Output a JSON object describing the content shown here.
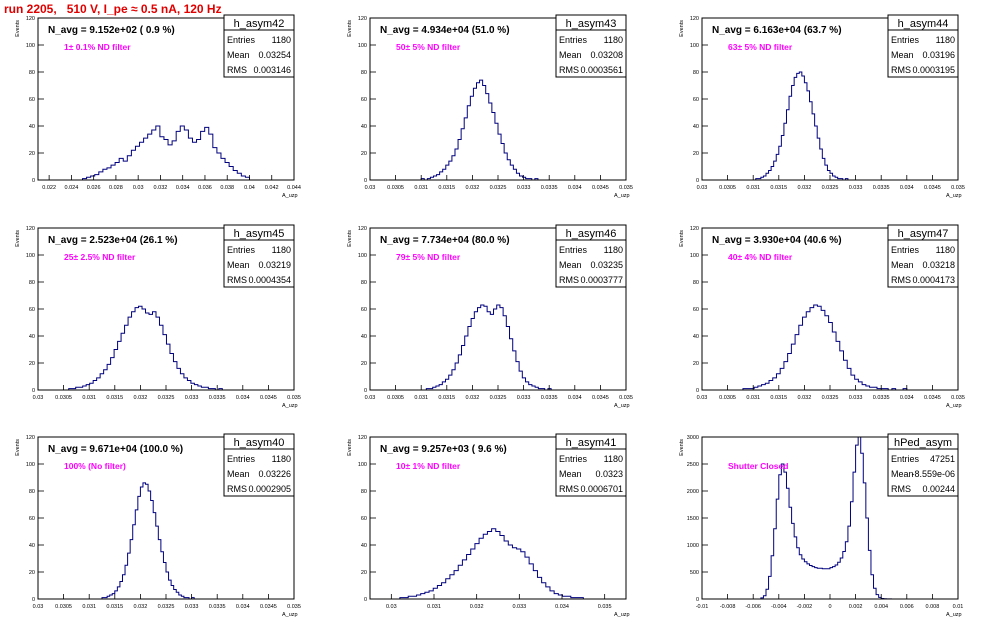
{
  "run_title": "run 2205,   510 V, I_pe ≈ 0.5 nA, 120 Hz",
  "colors": {
    "hist": "#00007f",
    "label": "#ff00ff",
    "run_title": "#e00000",
    "axis": "#000000"
  },
  "common": {
    "ylabel": "Events",
    "xlabel": "A_uzp",
    "stat_keys": [
      "Entries",
      "Mean",
      "RMS"
    ]
  },
  "chart_data": [
    {
      "type": "bar",
      "histogram": true,
      "title": "h_asym42",
      "navg": "N_avg = 9.152e+02 ( 0.9 %)",
      "filter": "1± 0.1% ND filter",
      "stats": {
        "Entries": "1180",
        "Mean": "0.03254",
        "RMS": "0.003146"
      },
      "xlim": [
        0.021,
        0.044
      ],
      "ylim": [
        0,
        120
      ],
      "xticks": [
        0.022,
        0.024,
        0.026,
        0.028,
        0.03,
        0.032,
        0.034,
        0.036,
        0.038,
        0.04,
        0.042,
        0.044
      ],
      "xticklabels": [
        "0.022",
        "0.024",
        "0.026",
        "0.028",
        "0.03",
        "0.032",
        "0.034",
        "0.036",
        "0.038",
        "0.04",
        "0.042",
        "0.044"
      ],
      "yticks": [
        0,
        20,
        40,
        60,
        80,
        100,
        120
      ],
      "yticklabels": [
        "0",
        "20",
        "40",
        "60",
        "80",
        "100",
        "120"
      ],
      "bins": {
        "lo": 0.025,
        "hi": 0.04,
        "n": 41
      },
      "values": [
        1,
        2,
        3,
        4,
        6,
        8,
        9,
        11,
        13,
        16,
        14,
        18,
        22,
        25,
        28,
        31,
        34,
        37,
        40,
        32,
        30,
        26,
        29,
        36,
        40,
        37,
        31,
        28,
        30,
        36,
        39,
        34,
        24,
        20,
        16,
        13,
        10,
        7,
        5,
        3,
        2
      ]
    },
    {
      "type": "bar",
      "histogram": true,
      "title": "h_asym43",
      "navg": "N_avg = 4.934e+04 (51.0 %)",
      "filter": "50± 5% ND filter",
      "stats": {
        "Entries": "1180",
        "Mean": "0.03208",
        "RMS": "0.0003561"
      },
      "xlim": [
        0.03,
        0.035
      ],
      "ylim": [
        0,
        120
      ],
      "xticks": [
        0.03,
        0.0305,
        0.031,
        0.0315,
        0.032,
        0.0325,
        0.033,
        0.0335,
        0.034,
        0.0345,
        0.035
      ],
      "xticklabels": [
        "0.03",
        "0.0305",
        "0.031",
        "0.0315",
        "0.032",
        "0.0325",
        "0.033",
        "0.0335",
        "0.034",
        "0.0345",
        "0.035"
      ],
      "yticks": [
        0,
        20,
        40,
        60,
        80,
        100,
        120
      ],
      "yticklabels": [
        "0",
        "20",
        "40",
        "60",
        "80",
        "100",
        "120"
      ],
      "bins": {
        "lo": 0.031,
        "hi": 0.0334,
        "n": 40
      },
      "values": [
        1,
        0,
        1,
        2,
        3,
        4,
        6,
        8,
        11,
        14,
        18,
        23,
        30,
        38,
        46,
        55,
        62,
        68,
        72,
        74,
        70,
        64,
        57,
        50,
        42,
        34,
        27,
        20,
        15,
        11,
        8,
        5,
        3,
        2,
        1,
        1,
        0,
        1,
        0,
        0
      ]
    },
    {
      "type": "bar",
      "histogram": true,
      "title": "h_asym44",
      "navg": "N_avg = 6.163e+04 (63.7 %)",
      "filter": "63± 5% ND filter",
      "stats": {
        "Entries": "1180",
        "Mean": "0.03196",
        "RMS": "0.0003195"
      },
      "xlim": [
        0.03,
        0.035
      ],
      "ylim": [
        0,
        120
      ],
      "xticks": [
        0.03,
        0.0305,
        0.031,
        0.0315,
        0.032,
        0.0325,
        0.033,
        0.0335,
        0.034,
        0.0345,
        0.035
      ],
      "xticklabels": [
        "0.03",
        "0.0305",
        "0.031",
        "0.0315",
        "0.032",
        "0.0325",
        "0.033",
        "0.0335",
        "0.034",
        "0.0345",
        "0.035"
      ],
      "yticks": [
        0,
        20,
        40,
        60,
        80,
        100,
        120
      ],
      "yticklabels": [
        "0",
        "20",
        "40",
        "60",
        "80",
        "100",
        "120"
      ],
      "bins": {
        "lo": 0.031,
        "hi": 0.033,
        "n": 40
      },
      "values": [
        0,
        1,
        1,
        2,
        3,
        5,
        7,
        10,
        14,
        19,
        25,
        33,
        42,
        52,
        62,
        70,
        76,
        79,
        80,
        77,
        72,
        66,
        58,
        49,
        40,
        31,
        23,
        16,
        11,
        7,
        5,
        3,
        2,
        1,
        1,
        0,
        1,
        0,
        0,
        0
      ]
    },
    {
      "type": "bar",
      "histogram": true,
      "title": "h_asym45",
      "navg": "N_avg = 2.523e+04 (26.1 %)",
      "filter": "25± 2.5% ND filter",
      "stats": {
        "Entries": "1180",
        "Mean": "0.03219",
        "RMS": "0.0004354"
      },
      "xlim": [
        0.03,
        0.035
      ],
      "ylim": [
        0,
        120
      ],
      "xticks": [
        0.03,
        0.0305,
        0.031,
        0.0315,
        0.032,
        0.0325,
        0.033,
        0.0335,
        0.034,
        0.0345,
        0.035
      ],
      "xticklabels": [
        "0.03",
        "0.0305",
        "0.031",
        "0.0315",
        "0.032",
        "0.0325",
        "0.033",
        "0.0335",
        "0.034",
        "0.0345",
        "0.035"
      ],
      "yticks": [
        0,
        20,
        40,
        60,
        80,
        100,
        120
      ],
      "yticklabels": [
        "0",
        "20",
        "40",
        "60",
        "80",
        "100",
        "120"
      ],
      "bins": {
        "lo": 0.0306,
        "hi": 0.0336,
        "n": 44
      },
      "values": [
        1,
        1,
        2,
        2,
        3,
        4,
        5,
        7,
        9,
        12,
        15,
        19,
        24,
        30,
        36,
        42,
        48,
        54,
        58,
        61,
        62,
        60,
        57,
        56,
        58,
        54,
        48,
        41,
        34,
        27,
        21,
        16,
        12,
        9,
        7,
        5,
        4,
        3,
        2,
        2,
        1,
        1,
        0,
        1
      ]
    },
    {
      "type": "bar",
      "histogram": true,
      "title": "h_asym46",
      "navg": "N_avg = 7.734e+04 (80.0 %)",
      "filter": "79± 5% ND filter",
      "stats": {
        "Entries": "1180",
        "Mean": "0.03235",
        "RMS": "0.0003777"
      },
      "xlim": [
        0.03,
        0.035
      ],
      "ylim": [
        0,
        120
      ],
      "xticks": [
        0.03,
        0.0305,
        0.031,
        0.0315,
        0.032,
        0.0325,
        0.033,
        0.0335,
        0.034,
        0.0345,
        0.035
      ],
      "xticklabels": [
        "0.03",
        "0.0305",
        "0.031",
        "0.0315",
        "0.032",
        "0.0325",
        "0.033",
        "0.0335",
        "0.034",
        "0.0345",
        "0.035"
      ],
      "yticks": [
        0,
        20,
        40,
        60,
        80,
        100,
        120
      ],
      "yticklabels": [
        "0",
        "20",
        "40",
        "60",
        "80",
        "100",
        "120"
      ],
      "bins": {
        "lo": 0.0311,
        "hi": 0.0336,
        "n": 40
      },
      "values": [
        1,
        1,
        2,
        3,
        4,
        6,
        8,
        11,
        15,
        20,
        26,
        33,
        40,
        47,
        53,
        58,
        61,
        63,
        62,
        58,
        56,
        60,
        63,
        61,
        55,
        47,
        38,
        29,
        21,
        14,
        9,
        6,
        4,
        3,
        2,
        1,
        1,
        0,
        1,
        0
      ]
    },
    {
      "type": "bar",
      "histogram": true,
      "title": "h_asym47",
      "navg": "N_avg = 3.930e+04 (40.6 %)",
      "filter": "40± 4% ND filter",
      "stats": {
        "Entries": "1180",
        "Mean": "0.03218",
        "RMS": "0.0004173"
      },
      "xlim": [
        0.03,
        0.035
      ],
      "ylim": [
        0,
        120
      ],
      "xticks": [
        0.03,
        0.0305,
        0.031,
        0.0315,
        0.032,
        0.0325,
        0.033,
        0.0335,
        0.034,
        0.0345,
        0.035
      ],
      "xticklabels": [
        "0.03",
        "0.0305",
        "0.031",
        "0.0315",
        "0.032",
        "0.0325",
        "0.033",
        "0.0335",
        "0.034",
        "0.0345",
        "0.035"
      ],
      "yticks": [
        0,
        20,
        40,
        60,
        80,
        100,
        120
      ],
      "yticklabels": [
        "0",
        "20",
        "40",
        "60",
        "80",
        "100",
        "120"
      ],
      "bins": {
        "lo": 0.0308,
        "hi": 0.034,
        "n": 44
      },
      "values": [
        1,
        1,
        1,
        2,
        3,
        4,
        5,
        7,
        9,
        12,
        16,
        21,
        27,
        34,
        41,
        48,
        54,
        58,
        61,
        63,
        62,
        59,
        55,
        50,
        43,
        36,
        29,
        22,
        16,
        11,
        8,
        6,
        4,
        3,
        2,
        2,
        1,
        1,
        1,
        0,
        1,
        0,
        0,
        1
      ]
    },
    {
      "type": "bar",
      "histogram": true,
      "title": "h_asym40",
      "navg": "N_avg = 9.671e+04 (100.0 %)",
      "filter": "100% (No filter)",
      "stats": {
        "Entries": "1180",
        "Mean": "0.03226",
        "RMS": "0.0002905"
      },
      "xlim": [
        0.03,
        0.035
      ],
      "ylim": [
        0,
        120
      ],
      "xticks": [
        0.03,
        0.0305,
        0.031,
        0.0315,
        0.032,
        0.0325,
        0.033,
        0.0335,
        0.034,
        0.0345,
        0.035
      ],
      "xticklabels": [
        "0.03",
        "0.0305",
        "0.031",
        "0.0315",
        "0.032",
        "0.0325",
        "0.033",
        "0.0335",
        "0.034",
        "0.0345",
        "0.035"
      ],
      "yticks": [
        0,
        20,
        40,
        60,
        80,
        100,
        120
      ],
      "yticklabels": [
        "0",
        "20",
        "40",
        "60",
        "80",
        "100",
        "120"
      ],
      "bins": {
        "lo": 0.0312,
        "hi": 0.0332,
        "n": 40
      },
      "values": [
        0,
        1,
        1,
        2,
        3,
        4,
        6,
        9,
        13,
        18,
        25,
        34,
        44,
        55,
        66,
        76,
        83,
        86,
        85,
        80,
        73,
        64,
        54,
        44,
        35,
        27,
        20,
        14,
        10,
        7,
        5,
        3,
        2,
        1,
        1,
        0,
        1,
        0,
        0,
        0
      ]
    },
    {
      "type": "bar",
      "histogram": true,
      "title": "h_asym41",
      "navg": "N_avg = 9.257e+03 ( 9.6 %)",
      "filter": "10± 1% ND filter",
      "stats": {
        "Entries": "1180",
        "Mean": "0.0323",
        "RMS": "0.0006701"
      },
      "xlim": [
        0.0295,
        0.0355
      ],
      "ylim": [
        0,
        120
      ],
      "xticks": [
        0.03,
        0.031,
        0.032,
        0.033,
        0.034,
        0.035
      ],
      "xticklabels": [
        "0.03",
        "0.031",
        "0.032",
        "0.033",
        "0.034",
        "0.035"
      ],
      "yticks": [
        0,
        20,
        40,
        60,
        80,
        100,
        120
      ],
      "yticklabels": [
        "0",
        "20",
        "40",
        "60",
        "80",
        "100",
        "120"
      ],
      "bins": {
        "lo": 0.0302,
        "hi": 0.0345,
        "n": 44
      },
      "values": [
        1,
        1,
        2,
        2,
        3,
        4,
        5,
        6,
        8,
        10,
        12,
        15,
        18,
        21,
        25,
        29,
        33,
        37,
        41,
        45,
        48,
        50,
        52,
        50,
        47,
        43,
        40,
        38,
        37,
        35,
        31,
        26,
        21,
        16,
        12,
        9,
        6,
        4,
        3,
        2,
        2,
        1,
        1,
        1
      ]
    },
    {
      "type": "bar",
      "histogram": true,
      "title": "hPed_asym",
      "navg": "",
      "filter": "Shutter Closed",
      "stats": {
        "Entries": "47251",
        "Mean": "-8.559e-06",
        "RMS": "0.00244"
      },
      "xlim": [
        -0.01,
        0.01
      ],
      "ylim": [
        0,
        3000
      ],
      "xticks": [
        -0.01,
        -0.008,
        -0.006,
        -0.004,
        -0.002,
        0,
        0.002,
        0.004,
        0.006,
        0.008,
        0.01
      ],
      "xticklabels": [
        "-0.01",
        "-0.008",
        "-0.006",
        "-0.004",
        "-0.002",
        "0",
        "0.002",
        "0.004",
        "0.006",
        "0.008",
        "0.01"
      ],
      "yticks": [
        0,
        500,
        1000,
        1500,
        2000,
        2500,
        3000
      ],
      "yticklabels": [
        "0",
        "500",
        "1000",
        "1500",
        "2000",
        "2500",
        "3000"
      ],
      "bins": {
        "lo": -0.0054,
        "hi": 0.0054,
        "n": 54
      },
      "values": [
        20,
        60,
        180,
        420,
        800,
        1300,
        1850,
        2300,
        2500,
        2350,
        2050,
        1700,
        1400,
        1150,
        950,
        820,
        740,
        690,
        650,
        620,
        600,
        580,
        570,
        570,
        560,
        560,
        560,
        580,
        600,
        630,
        680,
        760,
        880,
        1060,
        1350,
        1800,
        2350,
        2850,
        3000,
        2700,
        2150,
        1500,
        900,
        450,
        200,
        80,
        30,
        10,
        5,
        3,
        2,
        1,
        0,
        0
      ]
    }
  ]
}
